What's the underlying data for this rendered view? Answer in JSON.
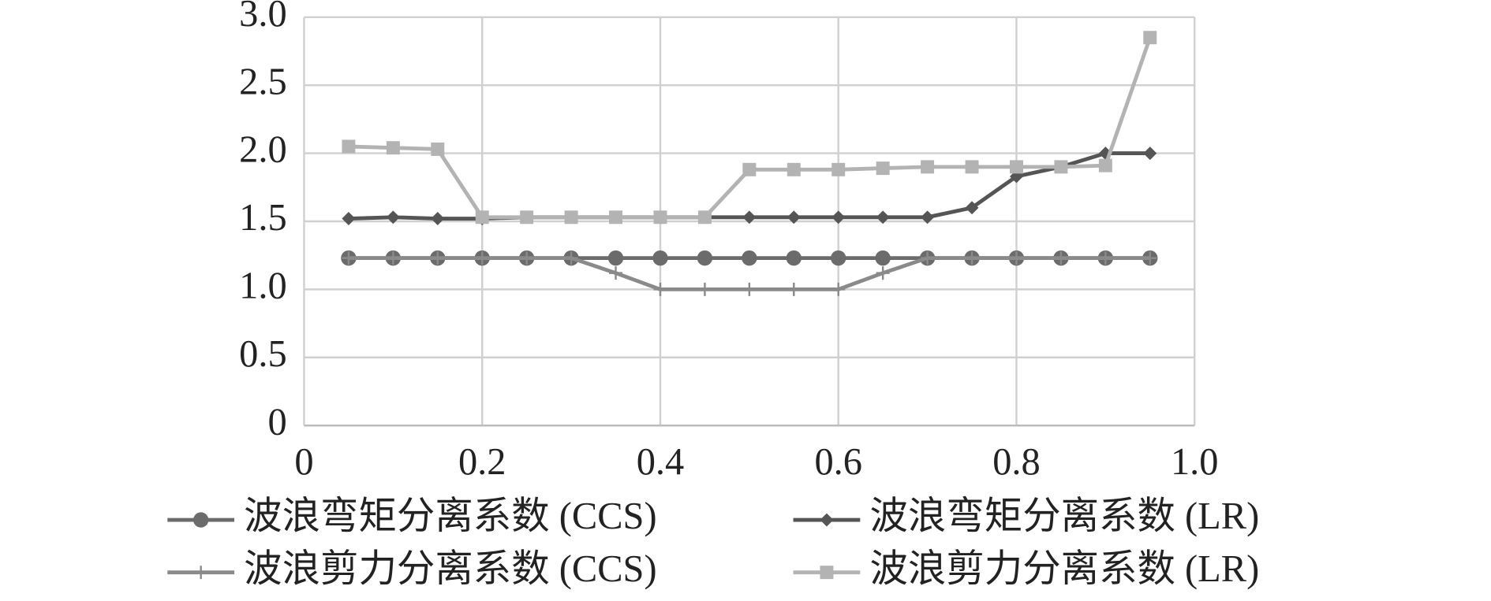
{
  "chart_data": {
    "type": "line",
    "x": [
      0.05,
      0.1,
      0.15,
      0.2,
      0.25,
      0.3,
      0.35,
      0.4,
      0.45,
      0.5,
      0.55,
      0.6,
      0.65,
      0.7,
      0.75,
      0.8,
      0.85,
      0.9,
      0.95
    ],
    "series": [
      {
        "name": "波浪弯矩分离系数 (CCS)",
        "color": "#6b6b6b",
        "marker": "circle",
        "values": [
          1.23,
          1.23,
          1.23,
          1.23,
          1.23,
          1.23,
          1.23,
          1.23,
          1.23,
          1.23,
          1.23,
          1.23,
          1.23,
          1.23,
          1.23,
          1.23,
          1.23,
          1.23,
          1.23
        ]
      },
      {
        "name": "波浪弯矩分离系数 (LR)",
        "color": "#555555",
        "marker": "diamond",
        "values": [
          1.52,
          1.53,
          1.52,
          1.52,
          1.53,
          1.53,
          1.53,
          1.53,
          1.53,
          1.53,
          1.53,
          1.53,
          1.53,
          1.53,
          1.6,
          1.83,
          1.9,
          2.0,
          2.0
        ]
      },
      {
        "name": "波浪剪力分离系数 (CCS)",
        "color": "#8a8a8a",
        "marker": "plus",
        "values": [
          1.23,
          1.23,
          1.23,
          1.23,
          1.23,
          1.23,
          1.12,
          1.0,
          1.0,
          1.0,
          1.0,
          1.0,
          1.12,
          1.23,
          1.23,
          1.23,
          1.23,
          1.23,
          1.23
        ]
      },
      {
        "name": "波浪剪力分离系数 (LR)",
        "color": "#b3b3b3",
        "marker": "square",
        "values": [
          2.05,
          2.04,
          2.03,
          1.53,
          1.53,
          1.53,
          1.53,
          1.53,
          1.53,
          1.88,
          1.88,
          1.88,
          1.89,
          1.9,
          1.9,
          1.9,
          1.9,
          1.91,
          2.85
        ]
      }
    ],
    "xlim": [
      0,
      1.0
    ],
    "xticks": [
      0,
      0.2,
      0.4,
      0.6,
      0.8,
      {
        "value": 1.0,
        "label": "1.0"
      }
    ],
    "ylim": [
      0,
      3.0
    ],
    "yticks": [
      0,
      0.5,
      {
        "value": 1.0,
        "label": "1.0"
      },
      1.5,
      {
        "value": 2.0,
        "label": "2.0"
      },
      2.5,
      {
        "value": 3.0,
        "label": "3.0"
      }
    ],
    "grid": true,
    "legend": "bottom"
  }
}
